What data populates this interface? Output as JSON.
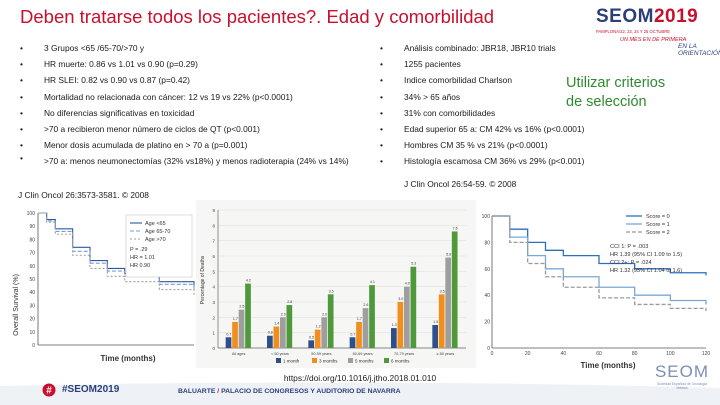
{
  "slide": {
    "title": "Deben tratarse todos los pacientes?. Edad y comorbilidad",
    "callout_line1": "Utilizar criterios",
    "callout_line2": "de selección"
  },
  "logo": {
    "main": "SEOM",
    "year": "2019",
    "sub": "PAMPLONA/22, 23, 24 Y 25 OCTUBRE",
    "tag1": "UN MES EN DE PRIMERA",
    "tag2": "EN LA ORIENTACIÓN"
  },
  "left_bullets": [
    "3 Grupos <65 /65-70/>70 y",
    "HR muerte: 0.86 vs 1.01 vs 0.90 (p=0.29)",
    "HR SLEI: 0.82 vs 0.90 vs 0.87 (p=0.42)",
    "Mortalidad no relacionada con cáncer: 12 vs 19 vs 22% (p<0.0001)",
    "No diferencias significativas en toxicidad",
    ">70 a recibieron menor número de ciclos de QT (p<0.001)",
    "Menor dosis acumulada de platino en > 70 a (p=0.001)",
    ">70 a: menos neumonectomías (32% vs18%) y menos radioterapia (24% vs 14%)"
  ],
  "right_bullets": [
    "Análisis combinado: JBR18, JBR10 trials",
    "1255 pacientes",
    "Indice comorbilidad Charlson",
    "34% > 65 años",
    "31% con comorbilidades",
    "Edad superior 65 a: CM 42% vs 16% (p<0.0001)",
    "Hombres CM 35 % vs 21% (p<0.0001)",
    "Histología escamosa CM 36% vs 29% (p<0.001)"
  ],
  "citations": {
    "right": "J Clin Oncol 26:54-59. © 2008",
    "left": "J Clin Oncol 26:3573-3581. © 2008",
    "doi": "https://doi.org/10.1016/j.jtho.2018.01.010"
  },
  "footer": {
    "hashtag": "#SEOM2019",
    "venue_a": "BALUARTE",
    "venue_sep": " / ",
    "venue_b": "PALACIO DE CONGRESOS Y AUDITORIO DE NAVARRA",
    "seom_name": "SEOM",
    "seom_desc": "Sociedad Española de Oncología Médica"
  },
  "colors": {
    "title_red": "#c8102e",
    "callout_green": "#2e8b2e",
    "brand_blue": "#2a3f7a"
  },
  "chart_data": [
    {
      "type": "line",
      "ylabel": "Overall Survival (%)",
      "xlabel": "Time (months)",
      "ylim": [
        0,
        100
      ],
      "y_ticks": [
        "100",
        "90",
        "80",
        "70",
        "60",
        "50",
        "40",
        "30",
        "20",
        "10",
        "0"
      ],
      "series": [
        {
          "name": "Age <65",
          "x": [
            0,
            6,
            12,
            24,
            36,
            48,
            60,
            84,
            108
          ],
          "values": [
            100,
            95,
            88,
            74,
            64,
            58,
            54,
            48,
            44
          ]
        },
        {
          "name": "Age 65-70",
          "x": [
            0,
            6,
            12,
            24,
            36,
            48,
            60,
            84,
            108
          ],
          "values": [
            100,
            94,
            86,
            71,
            62,
            56,
            52,
            46,
            42
          ]
        },
        {
          "name": "Age >70",
          "x": [
            0,
            6,
            12,
            24,
            36,
            48,
            60,
            84,
            108
          ],
          "values": [
            100,
            93,
            84,
            68,
            58,
            52,
            48,
            42,
            38
          ]
        }
      ],
      "annotations": [
        "P = .29",
        "HR = 1.01",
        "HR 0.90"
      ]
    },
    {
      "type": "bar",
      "ylabel": "Percentage of Deaths",
      "ylim": [
        0,
        9
      ],
      "y_ticks": [
        "9",
        "8",
        "7",
        "6",
        "5",
        "4",
        "3",
        "2",
        "1",
        "0"
      ],
      "categories": [
        "All ages",
        "< 50 years",
        "50-59 years",
        "60-69 years",
        "70-79 years",
        "≥ 80 years"
      ],
      "legend": [
        "1 month",
        "3 months",
        "5 months",
        "6 months"
      ],
      "series": [
        {
          "name": "1 month",
          "values": [
            0.7,
            0.8,
            0.5,
            0.7,
            1.3,
            1.5
          ]
        },
        {
          "name": "3 months",
          "values": [
            1.7,
            1.4,
            1.2,
            1.7,
            3.0,
            3.5
          ]
        },
        {
          "name": "5 months",
          "values": [
            2.5,
            2.0,
            2.0,
            2.6,
            4.0,
            5.9
          ]
        },
        {
          "name": "6 months",
          "values": [
            4.2,
            2.8,
            3.5,
            4.1,
            5.3,
            7.6
          ]
        }
      ],
      "data_labels": [
        [
          "0.7",
          "1.7",
          "2.5",
          "4.2"
        ],
        [
          "0.8",
          "1.4",
          "2.0",
          "2.8"
        ],
        [
          "0.5",
          "1.2",
          "2.0",
          "3.5"
        ],
        [
          "0.7",
          "1.7",
          "2.6",
          "4.1"
        ],
        [
          "1.3",
          "3.0",
          "4.0",
          "5.3"
        ],
        [
          "1.5",
          "3.5",
          "5.9",
          "7.6"
        ]
      ]
    },
    {
      "type": "line",
      "xlabel": "Time (months)",
      "ylim": [
        0,
        100
      ],
      "y_ticks": [
        "100",
        "80",
        "60",
        "40",
        "20",
        "0"
      ],
      "x_ticks": [
        "0",
        "20",
        "40",
        "60",
        "80",
        "100",
        "120"
      ],
      "legend": [
        "Score = 0",
        "Score = 1",
        "Score = 2"
      ],
      "series": [
        {
          "name": "Score = 0",
          "x": [
            0,
            10,
            20,
            30,
            40,
            60,
            80,
            100,
            120
          ],
          "values": [
            100,
            90,
            80,
            74,
            70,
            64,
            60,
            57,
            55
          ]
        },
        {
          "name": "Score = 1",
          "x": [
            0,
            10,
            20,
            30,
            40,
            60,
            80,
            100,
            120
          ],
          "values": [
            100,
            84,
            70,
            60,
            54,
            46,
            40,
            36,
            33
          ]
        },
        {
          "name": "Score = 2",
          "x": [
            0,
            10,
            20,
            30,
            40,
            60,
            80,
            100,
            120
          ],
          "values": [
            100,
            80,
            64,
            54,
            46,
            38,
            33,
            30,
            28
          ]
        }
      ],
      "annotations": [
        "CCI 1: P = .003",
        "HR 1.39 (95% CI 1.09 to 1.5)",
        "CCI 2+: P = .024",
        "HR 1.32 (95% CI 1.04 to 1.6)"
      ]
    }
  ]
}
